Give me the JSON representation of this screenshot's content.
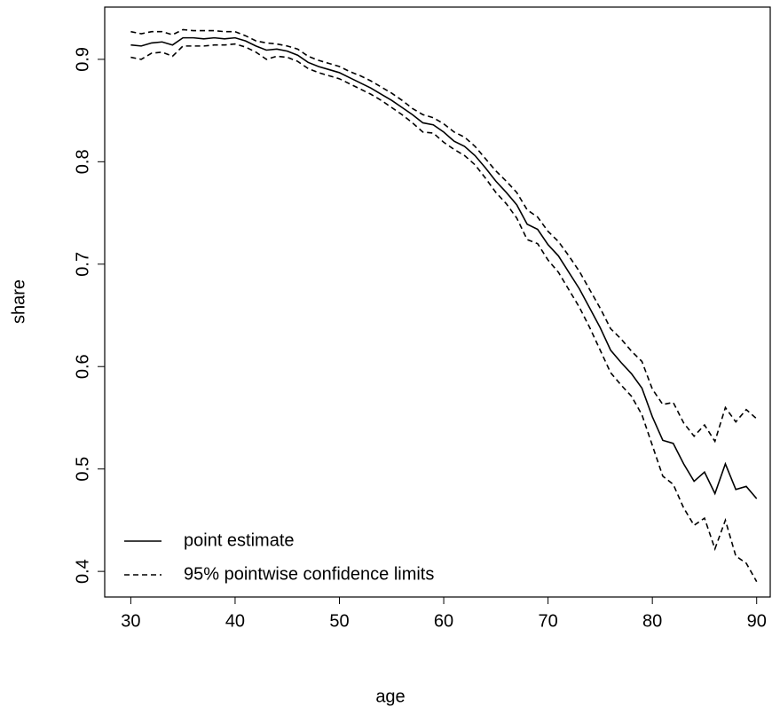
{
  "chart_data": {
    "type": "line",
    "xlabel": "age",
    "ylabel": "share",
    "x": [
      30,
      31,
      32,
      33,
      34,
      35,
      36,
      37,
      38,
      39,
      40,
      41,
      42,
      43,
      44,
      45,
      46,
      47,
      48,
      49,
      50,
      51,
      52,
      53,
      54,
      55,
      56,
      57,
      58,
      59,
      60,
      61,
      62,
      63,
      64,
      65,
      66,
      67,
      68,
      69,
      70,
      71,
      72,
      73,
      74,
      75,
      76,
      77,
      78,
      79,
      80,
      81,
      82,
      83,
      84,
      85,
      86,
      87,
      88,
      89,
      90
    ],
    "series": [
      {
        "name": "point estimate",
        "color": "#000000",
        "dash": false,
        "values": [
          0.914,
          0.913,
          0.916,
          0.917,
          0.914,
          0.921,
          0.921,
          0.92,
          0.921,
          0.92,
          0.921,
          0.918,
          0.913,
          0.909,
          0.91,
          0.908,
          0.904,
          0.897,
          0.893,
          0.89,
          0.887,
          0.882,
          0.877,
          0.872,
          0.866,
          0.86,
          0.853,
          0.846,
          0.838,
          0.836,
          0.829,
          0.82,
          0.815,
          0.806,
          0.794,
          0.781,
          0.77,
          0.758,
          0.739,
          0.734,
          0.719,
          0.708,
          0.692,
          0.676,
          0.657,
          0.638,
          0.616,
          0.604,
          0.593,
          0.579,
          0.551,
          0.528,
          0.525,
          0.505,
          0.488,
          0.497,
          0.476,
          0.505,
          0.48,
          0.483,
          0.471
        ]
      },
      {
        "name": "95% pointwise confidence limits",
        "color": "#000000",
        "dash": true,
        "upper": [
          0.927,
          0.925,
          0.927,
          0.927,
          0.924,
          0.929,
          0.928,
          0.928,
          0.928,
          0.927,
          0.927,
          0.923,
          0.918,
          0.916,
          0.915,
          0.913,
          0.91,
          0.903,
          0.899,
          0.896,
          0.893,
          0.888,
          0.884,
          0.879,
          0.873,
          0.867,
          0.86,
          0.852,
          0.846,
          0.843,
          0.837,
          0.829,
          0.824,
          0.815,
          0.803,
          0.791,
          0.781,
          0.77,
          0.753,
          0.746,
          0.732,
          0.722,
          0.708,
          0.693,
          0.675,
          0.657,
          0.637,
          0.627,
          0.615,
          0.605,
          0.578,
          0.563,
          0.565,
          0.545,
          0.532,
          0.543,
          0.527,
          0.56,
          0.546,
          0.558,
          0.549
        ],
        "lower": [
          0.902,
          0.9,
          0.906,
          0.907,
          0.903,
          0.913,
          0.913,
          0.913,
          0.914,
          0.914,
          0.915,
          0.912,
          0.907,
          0.9,
          0.903,
          0.902,
          0.898,
          0.891,
          0.887,
          0.884,
          0.881,
          0.876,
          0.871,
          0.866,
          0.86,
          0.853,
          0.846,
          0.838,
          0.829,
          0.828,
          0.819,
          0.812,
          0.806,
          0.797,
          0.784,
          0.77,
          0.759,
          0.745,
          0.724,
          0.72,
          0.704,
          0.692,
          0.675,
          0.658,
          0.638,
          0.616,
          0.594,
          0.582,
          0.571,
          0.553,
          0.523,
          0.493,
          0.485,
          0.462,
          0.445,
          0.452,
          0.422,
          0.45,
          0.415,
          0.408,
          0.39
        ]
      }
    ],
    "xlim": [
      27.5,
      91.3
    ],
    "ylim": [
      0.375,
      0.951
    ],
    "xticks": [
      30,
      40,
      50,
      60,
      70,
      80,
      90
    ],
    "yticks": [
      0.4,
      0.5,
      0.6,
      0.7,
      0.8,
      0.9
    ],
    "legend": "bottomleft",
    "grid": false
  }
}
